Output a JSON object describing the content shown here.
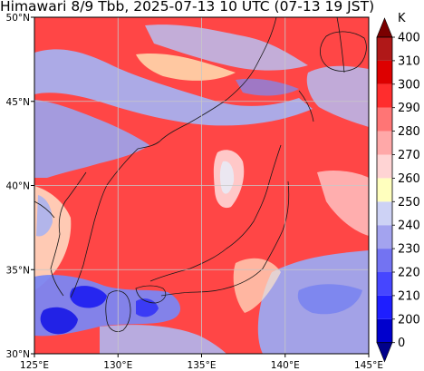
{
  "title": "Himawari 8/9 Tbb, 2025-07-13 10 UTC (07-13 19 JST)",
  "map": {
    "lon_range": [
      125,
      145
    ],
    "lat_range": [
      30,
      50
    ],
    "grid": true,
    "lon_ticks": [
      "125°E",
      "130°E",
      "135°E",
      "140°E",
      "145°E"
    ],
    "lat_ticks": [
      "30°N",
      "35°N",
      "40°N",
      "45°N",
      "50°N"
    ],
    "lon_values": [
      125,
      130,
      135,
      140,
      145
    ],
    "lat_values": [
      30,
      35,
      40,
      45,
      50
    ]
  },
  "colorbar": {
    "unit": "K",
    "labels": [
      "0",
      "200",
      "210",
      "220",
      "230",
      "240",
      "250",
      "260",
      "270",
      "280",
      "290",
      "300",
      "310",
      "400"
    ],
    "colors": [
      "#00008b",
      "#0000cd",
      "#1e1eff",
      "#4646ff",
      "#7373f2",
      "#a3a3ef",
      "#cdd2f5",
      "#ffffbe",
      "#ffd4d4",
      "#ffa8a8",
      "#ff7575",
      "#ff2d2d",
      "#dd0000",
      "#b01818",
      "#7a0000"
    ]
  },
  "colors": {
    "cloud_cold": "#a3a3ef",
    "cloud_very_cold": "#4646ff",
    "warm_surface": "#ff4545",
    "coastline": "#1a1a1a",
    "grid": "#c8c8c8"
  }
}
